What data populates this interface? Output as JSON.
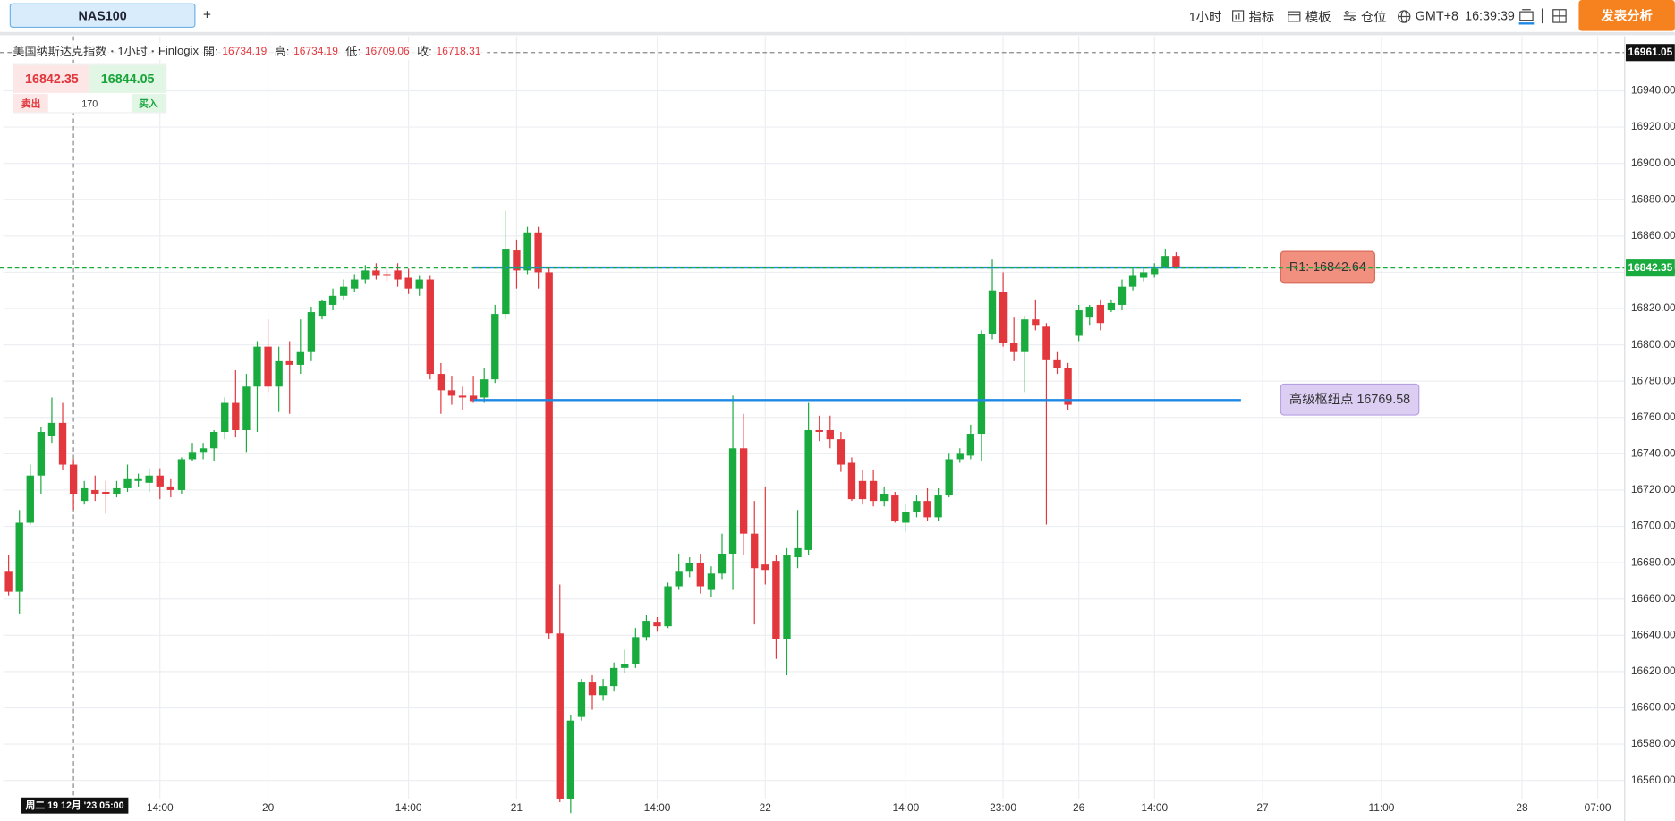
{
  "toolbar": {
    "tab": "NAS100",
    "add": "+",
    "interval": "1小时",
    "indicators": "指标",
    "templates": "模板",
    "positions": "仓位",
    "timezone": "GMT+8",
    "clock": "16:39:39",
    "publish": "发表分析"
  },
  "trade_panel": {
    "sell_price": 16842.35,
    "buy_price": 16844.05,
    "sell": "卖出",
    "quantity": 170,
    "buy": "买入"
  },
  "chart_data": {
    "type": "candlestick",
    "title": "美国纳斯达克指数",
    "interval": "1小时",
    "source": "Finlogix",
    "ohlc_labels": [
      "開:",
      "高:",
      "低:",
      "收:"
    ],
    "ohlc_values": [
      16734.19,
      16734.19,
      16709.06,
      16718.31
    ],
    "categories": [
      null,
      null,
      null,
      null,
      null,
      null,
      null,
      null,
      null,
      null,
      null,
      null,
      null,
      null,
      "14:00",
      null,
      null,
      null,
      null,
      null,
      null,
      null,
      null,
      null,
      "20",
      null,
      null,
      null,
      null,
      null,
      null,
      null,
      null,
      null,
      null,
      null,
      null,
      "14:00",
      null,
      null,
      null,
      null,
      null,
      null,
      null,
      null,
      null,
      "21",
      null,
      null,
      null,
      null,
      null,
      null,
      null,
      null,
      null,
      null,
      null,
      null,
      "14:00",
      null,
      null,
      null,
      null,
      null,
      null,
      null,
      null,
      null,
      "22",
      null,
      null,
      null,
      null,
      null,
      null,
      null,
      null,
      null,
      null,
      null,
      null,
      "14:00",
      null,
      null,
      null,
      null,
      null,
      null,
      null,
      null,
      "23:00",
      null,
      null,
      null,
      null,
      null,
      null,
      "26",
      null,
      null,
      null,
      null,
      null,
      null,
      "14:00",
      null,
      null,
      null,
      null,
      null,
      null,
      null,
      null,
      null,
      "27",
      null,
      null,
      null,
      null,
      null,
      null,
      null,
      null,
      null,
      null,
      "11:00",
      null,
      null,
      null,
      null,
      null,
      null,
      null,
      null,
      null,
      null,
      null,
      null,
      "28",
      null,
      null,
      null,
      null,
      null,
      null,
      "07:00",
      null,
      null
    ],
    "open": [
      16675,
      16664,
      16702,
      16728,
      16750,
      16757,
      16734,
      16714,
      16720,
      16719,
      16718,
      16721,
      16725,
      16724,
      16728,
      16722,
      16720,
      16737,
      16741,
      16743,
      16752,
      16768,
      16753,
      16777,
      16799,
      16777,
      16791,
      16789,
      16796,
      16816,
      16822,
      16827,
      16831,
      16836,
      16841,
      16839,
      16841,
      16837,
      16831,
      16836,
      16784,
      16775,
      16772,
      16772,
      16771,
      16781,
      16817,
      16852,
      16841,
      16862,
      16840,
      16641,
      16550,
      16595,
      16614,
      16607,
      16612,
      16622,
      16624,
      16639,
      16647,
      16645,
      16667,
      16675,
      16680,
      16665,
      16674,
      16685,
      16743,
      16696,
      16679,
      16681,
      16638,
      16683,
      16687,
      16753,
      16753,
      16748,
      16735,
      16725,
      16725,
      16714,
      16717,
      16702,
      16708,
      16714,
      16705,
      16717,
      16737,
      16739,
      16751,
      16806,
      16829,
      16801,
      16796,
      16814,
      16810,
      16792,
      16787,
      16805,
      16815,
      16822,
      16819,
      16822,
      16832,
      16837,
      16839,
      16843,
      16849,
      null,
      null,
      null,
      null,
      null,
      null,
      null,
      null,
      null,
      null,
      null,
      null,
      null,
      null,
      null,
      null,
      null,
      null,
      null,
      null,
      null,
      null,
      null,
      null,
      null,
      null,
      null,
      null,
      null,
      null,
      null,
      null,
      null,
      null,
      null,
      null,
      null,
      null,
      null,
      null,
      null
    ],
    "high": [
      16684,
      16709,
      16734,
      16755,
      16771,
      16768,
      16737,
      16725,
      16728,
      16725,
      16725,
      16734,
      16729,
      16732,
      16732,
      16726,
      16738,
      16746,
      16746,
      16753,
      16771,
      16786,
      16784,
      16802,
      16814,
      16799,
      16802,
      16814,
      16821,
      16825,
      16831,
      16836,
      16839,
      16844,
      16845,
      16843,
      16845,
      16842,
      16838,
      16838,
      16790,
      16783,
      16777,
      16783,
      16787,
      16822,
      16874,
      16858,
      16865,
      16865,
      16843,
      16668,
      16596,
      16616,
      16618,
      16616,
      16625,
      16632,
      16644,
      16651,
      16650,
      16669,
      16685,
      16683,
      16685,
      16678,
      16696,
      16772,
      16762,
      16714,
      16722,
      16684,
      16688,
      16709,
      16768,
      16761,
      16761,
      16752,
      16738,
      16731,
      16731,
      16722,
      16719,
      16712,
      16717,
      16721,
      16721,
      16740,
      16743,
      16756,
      16808,
      16847,
      16840,
      16815,
      16816,
      16825,
      16812,
      16796,
      16790,
      16822,
      16822,
      16825,
      16825,
      16836,
      16842,
      16843,
      16845,
      16853,
      16851,
      null,
      null,
      null,
      null,
      null,
      null,
      null,
      null,
      null,
      null,
      null,
      null,
      null,
      null,
      null,
      null,
      null,
      null,
      null,
      null,
      null,
      null,
      null,
      null,
      null,
      null,
      null,
      null,
      null,
      null,
      null,
      null,
      null,
      null,
      null,
      null,
      null,
      null,
      null,
      null,
      null
    ],
    "low": [
      16662,
      16652,
      16701,
      16718,
      16746,
      16731,
      16709,
      16712,
      16714,
      16707,
      16716,
      16719,
      16722,
      16719,
      16715,
      16716,
      16718,
      16736,
      16737,
      16736,
      16748,
      16749,
      16741,
      16752,
      16774,
      16763,
      16762,
      16784,
      16791,
      16814,
      16819,
      16825,
      16829,
      16834,
      16836,
      16835,
      16832,
      16828,
      16827,
      16781,
      16762,
      16767,
      16764,
      16768,
      16768,
      16779,
      16814,
      16831,
      16839,
      16831,
      16638,
      16548,
      16542,
      16593,
      16599,
      16604,
      16609,
      16619,
      16622,
      16637,
      16642,
      16644,
      16665,
      16672,
      16663,
      16661,
      16671,
      16665,
      16684,
      16646,
      16668,
      16627,
      16618,
      16677,
      16684,
      16747,
      16743,
      16730,
      16714,
      16712,
      16711,
      16711,
      16702,
      16697,
      16705,
      16703,
      16703,
      16716,
      16735,
      16737,
      16736,
      16803,
      16799,
      16791,
      16774,
      16808,
      16701,
      16784,
      16764,
      16802,
      16811,
      16808,
      16818,
      16819,
      16830,
      16835,
      16837,
      16842,
      16842,
      null,
      null,
      null,
      null,
      null,
      null,
      null,
      null,
      null,
      null,
      null,
      null,
      null,
      null,
      null,
      null,
      null,
      null,
      null,
      null,
      null,
      null,
      null,
      null,
      null,
      null,
      null,
      null,
      null,
      null,
      null,
      null,
      null,
      null,
      null,
      null,
      null,
      null,
      null,
      null,
      null
    ],
    "close": [
      16664,
      16702,
      16728,
      16752,
      16757,
      16734,
      16718,
      16721,
      16718,
      16718,
      16721,
      16726,
      16726,
      16728,
      16722,
      16720,
      16737,
      16741,
      16743,
      16752,
      16768,
      16753,
      16777,
      16799,
      16777,
      16791,
      16789,
      16796,
      16818,
      16824,
      16827,
      16832,
      16836,
      16841,
      16838,
      16838,
      16836,
      16831,
      16836,
      16784,
      16775,
      16772,
      16771,
      16769,
      16781,
      16817,
      16853,
      16841,
      16862,
      16840,
      16641,
      16550,
      16593,
      16614,
      16607,
      16612,
      16622,
      16624,
      16639,
      16648,
      16645,
      16667,
      16675,
      16680,
      16667,
      16674,
      16685,
      16743,
      16696,
      16677,
      16676,
      16638,
      16684,
      16688,
      16753,
      16752,
      16748,
      16734,
      16715,
      16715,
      16714,
      16718,
      16703,
      16708,
      16714,
      16705,
      16717,
      16737,
      16740,
      16751,
      16806,
      16830,
      16801,
      16796,
      16814,
      16811,
      16792,
      16787,
      16767,
      16819,
      16821,
      16812,
      16823,
      16832,
      16838,
      16840,
      16842,
      16849,
      16843,
      null,
      null,
      null,
      null,
      null,
      null,
      null,
      null,
      null,
      null,
      null,
      null,
      null,
      null,
      null,
      null,
      null,
      null,
      null,
      null,
      null,
      null,
      null,
      null,
      null,
      null,
      null,
      null,
      null,
      null,
      null,
      null,
      null,
      null,
      null,
      null,
      null,
      null,
      null,
      null,
      null
    ],
    "up_color": "#1aab3e",
    "down_color": "#e2373d",
    "ylim": [
      16550,
      16970
    ],
    "yticks": [
      {
        "value": 16560,
        "label": "16560.00"
      },
      {
        "value": 16580,
        "label": "16580.00"
      },
      {
        "value": 16600,
        "label": "16600.00"
      },
      {
        "value": 16620,
        "label": "16620.00"
      },
      {
        "value": 16640,
        "label": "16640.00"
      },
      {
        "value": 16660,
        "label": "16660.00"
      },
      {
        "value": 16680,
        "label": "16680.00"
      },
      {
        "value": 16700,
        "label": "16700.00"
      },
      {
        "value": 16720,
        "label": "16720.00"
      },
      {
        "value": 16740,
        "label": "16740.00"
      },
      {
        "value": 16760,
        "label": "16760.00"
      },
      {
        "value": 16780,
        "label": "16780.00"
      },
      {
        "value": 16800,
        "label": "16800.00"
      },
      {
        "value": 16820,
        "label": "16820.00"
      },
      {
        "value": 16840,
        "label": "16840.00"
      },
      {
        "value": 16860,
        "label": "16860.00"
      },
      {
        "value": 16880,
        "label": "16880.00"
      },
      {
        "value": 16900,
        "label": "16900.00"
      },
      {
        "value": 16920,
        "label": "16920.00"
      },
      {
        "value": 16940,
        "label": "16940.00"
      }
    ],
    "grid": true,
    "last_price": 16842.35,
    "last_price_color": "#1aab3e",
    "crosshair": {
      "price": 16961.05,
      "time": "周二 19 12月 '23 05:00"
    },
    "levels": [
      {
        "label": "R1: 16842.64",
        "value": 16842.64,
        "color": "#1e88e5",
        "box_color": "#f2907f",
        "box_border": "#d96b5b"
      },
      {
        "label": "高级枢纽点 16769.58",
        "value": 16769.58,
        "color": "#1e88e5",
        "box_color": "#dccdf3",
        "box_border": "#b7a0e2"
      }
    ]
  }
}
